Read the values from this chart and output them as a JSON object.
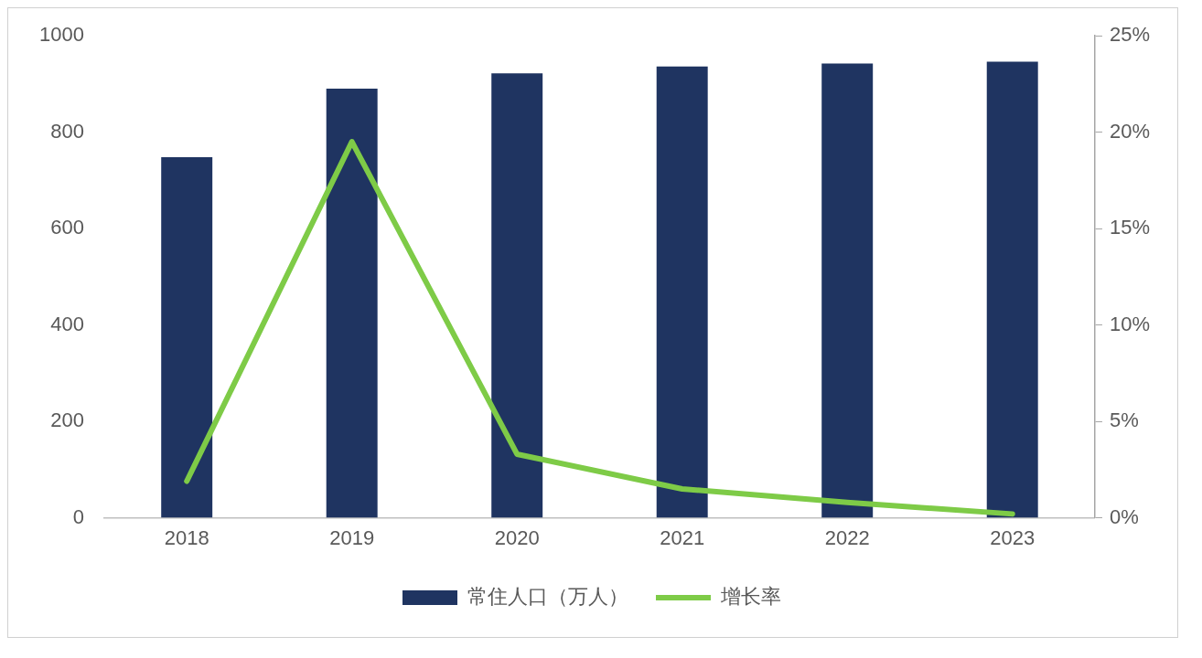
{
  "chart_data": {
    "type": "bar",
    "categories": [
      "2018",
      "2019",
      "2020",
      "2021",
      "2022",
      "2023"
    ],
    "series": [
      {
        "name": "常住人口（万人）",
        "color": "#1f3461",
        "values": [
          748,
          890,
          922,
          936,
          942,
          946
        ]
      },
      {
        "name": "增长率",
        "type": "line",
        "axis": "y2",
        "color": "#7ecb47",
        "values": [
          1.9,
          19.5,
          3.3,
          1.5,
          0.8,
          0.2
        ]
      }
    ],
    "ylim": [
      0,
      1000
    ],
    "yticks": [
      0,
      200,
      400,
      600,
      800,
      1000
    ],
    "y2lim": [
      0,
      25
    ],
    "y2ticks": [
      {
        "value": 0,
        "label": "0%"
      },
      {
        "value": 5,
        "label": "5%"
      },
      {
        "value": 10,
        "label": "10%"
      },
      {
        "value": 15,
        "label": "15%"
      },
      {
        "value": 20,
        "label": "20%"
      },
      {
        "value": 25,
        "label": "25%"
      }
    ],
    "legend": "bottom",
    "marker": "none"
  }
}
